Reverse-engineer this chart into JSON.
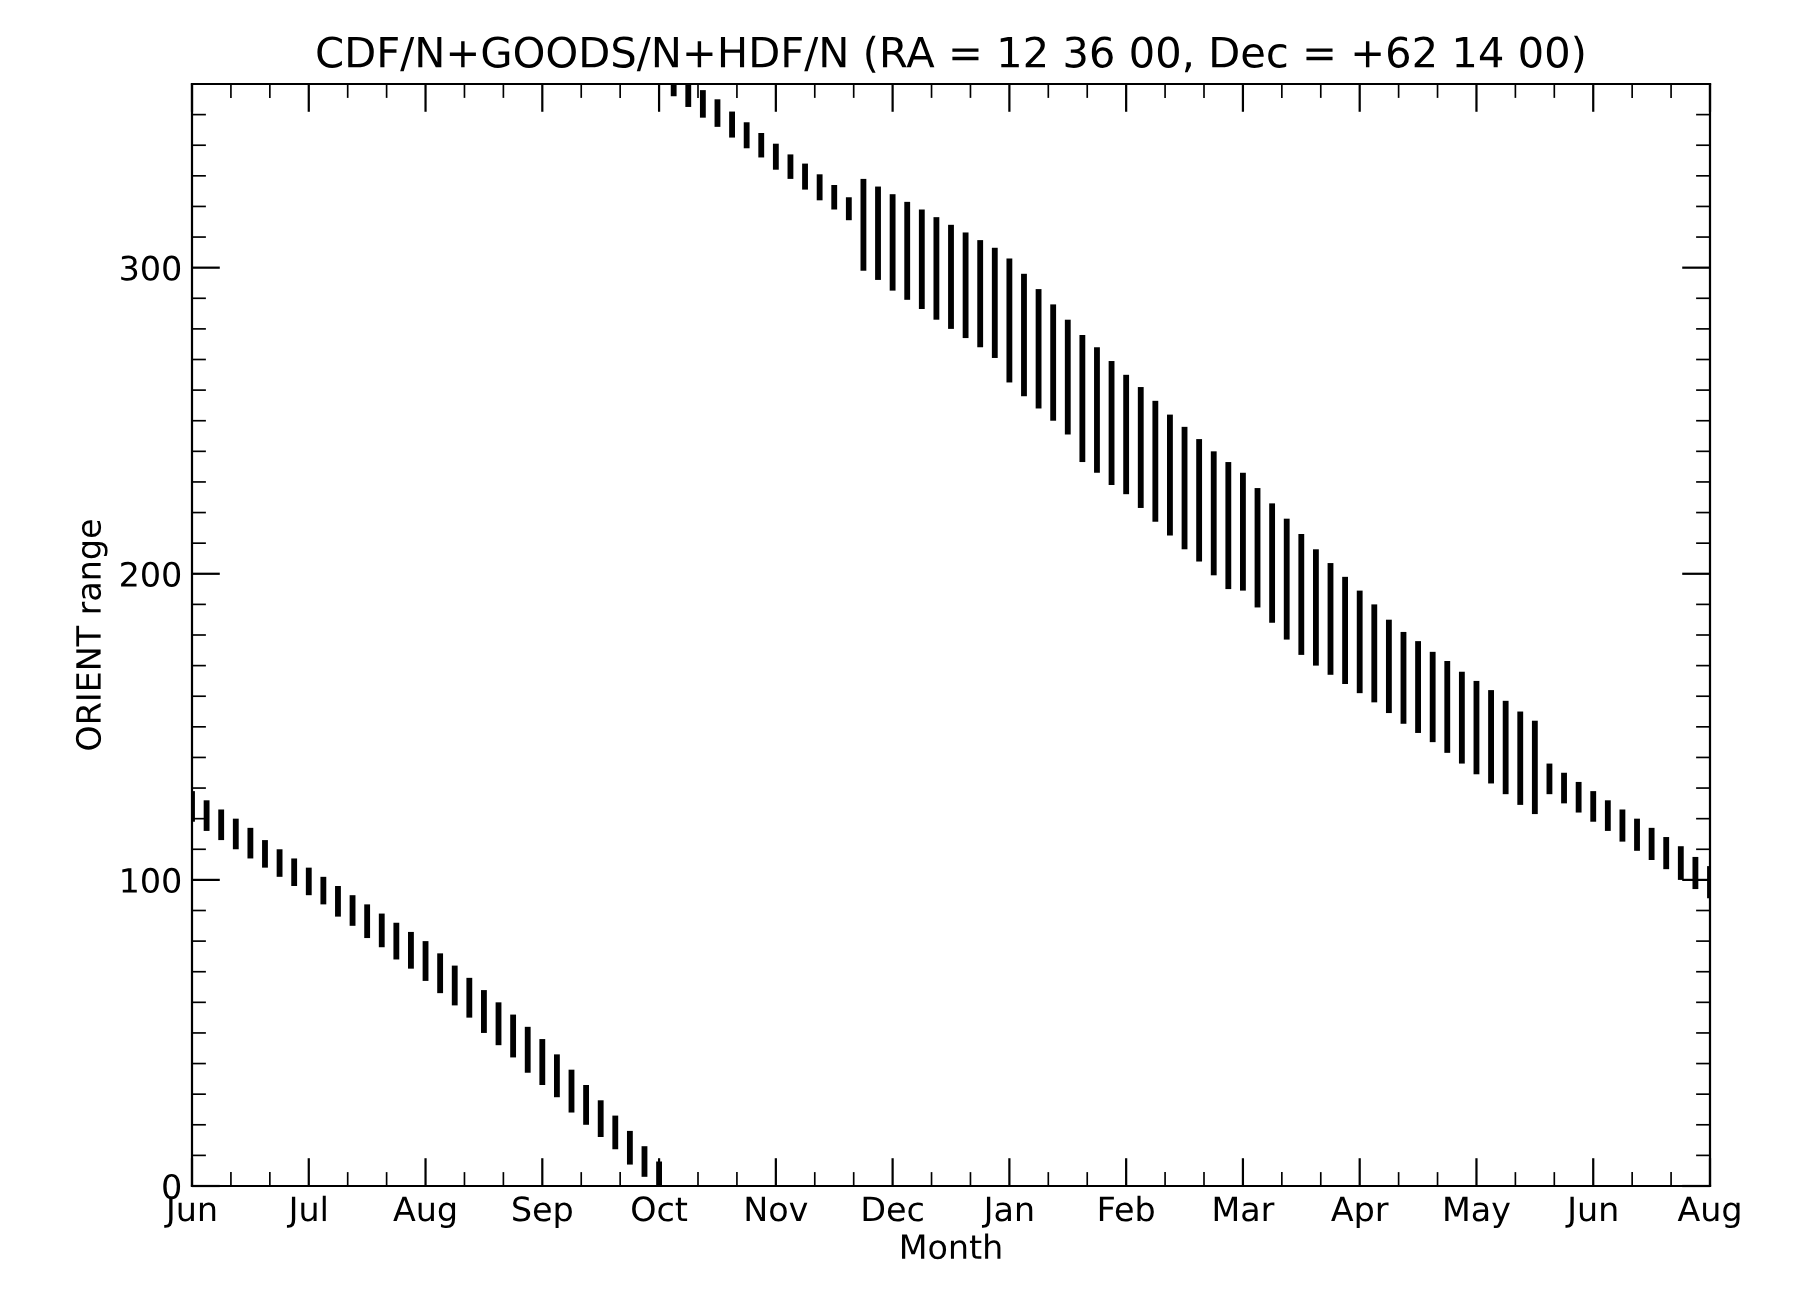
{
  "chart_data": {
    "type": "bar",
    "title": "CDF/N+GOODS/N+HDF/N (RA = 12 36 00, Dec = +62 14 00)",
    "xlabel": "Month",
    "ylabel": "ORIENT range",
    "color": "#000000",
    "categories": [
      "Jun",
      null,
      null,
      null,
      null,
      null,
      null,
      null,
      "Jul",
      null,
      null,
      null,
      null,
      null,
      null,
      null,
      "Aug",
      null,
      null,
      null,
      null,
      null,
      null,
      null,
      "Sep",
      null,
      null,
      null,
      null,
      null,
      null,
      null,
      "Oct",
      null,
      null,
      null,
      null,
      null,
      null,
      null,
      "Nov",
      null,
      null,
      null,
      null,
      null,
      null,
      null,
      "Dec",
      null,
      null,
      null,
      null,
      null,
      null,
      null,
      "Jan",
      null,
      null,
      null,
      null,
      null,
      null,
      null,
      "Feb",
      null,
      null,
      null,
      null,
      null,
      null,
      null,
      "Mar",
      null,
      null,
      null,
      null,
      null,
      null,
      null,
      "Apr",
      null,
      null,
      null,
      null,
      null,
      null,
      null,
      "May",
      null,
      null,
      null,
      null,
      null,
      null,
      null,
      "Jun",
      null,
      null,
      null,
      null,
      null,
      null,
      null,
      "Aug"
    ],
    "base": [
      119,
      116,
      113,
      110,
      107,
      104,
      101,
      98,
      95,
      92,
      88,
      85,
      81,
      78,
      74,
      71,
      67,
      63,
      59,
      55,
      50,
      46,
      42,
      37,
      33,
      29,
      24,
      20,
      16,
      12,
      7,
      3,
      0,
      356,
      352.5,
      349,
      346,
      342.5,
      339,
      336,
      332,
      329,
      325.5,
      322,
      319,
      315.5,
      299,
      296,
      292.5,
      289.5,
      286.5,
      283,
      280,
      277,
      274,
      270.5,
      262.5,
      258,
      254,
      250,
      245.5,
      236.5,
      233,
      229,
      226,
      221.5,
      217,
      212.5,
      208,
      204,
      199.5,
      195,
      194.5,
      189,
      184,
      178.5,
      173.5,
      170,
      167,
      164,
      161,
      158,
      154.5,
      151,
      148,
      145,
      141.5,
      138,
      134.5,
      131.5,
      128,
      124.5,
      121.5,
      128,
      125,
      122,
      119,
      116,
      112.5,
      109.5,
      106.5,
      103.5,
      100,
      97,
      94
    ],
    "values": [
      10,
      10,
      10,
      10,
      10,
      9,
      9,
      9,
      9,
      9,
      10,
      10,
      11,
      11,
      12,
      12,
      13,
      13,
      13,
      13,
      14,
      14,
      14,
      15,
      15,
      14,
      14,
      13,
      12,
      11,
      11,
      10,
      8,
      4,
      7.5,
      9,
      9,
      8.5,
      8.5,
      8,
      8.5,
      8,
      8.5,
      8.5,
      8,
      7.5,
      30,
      30.5,
      31.5,
      32,
      32.5,
      33.5,
      34,
      34.5,
      35,
      36,
      40.5,
      40,
      39,
      38,
      37.5,
      41.5,
      41,
      40.5,
      39,
      39.5,
      39.5,
      39.5,
      40,
      40,
      40.5,
      41.5,
      38.5,
      39,
      39,
      39.5,
      39.5,
      38,
      36.5,
      35,
      33.5,
      32,
      30.5,
      30,
      30,
      29.5,
      30,
      30,
      30.5,
      30.5,
      30.5,
      30.5,
      30.5,
      10,
      10,
      10,
      10,
      10,
      10.5,
      10.5,
      10.5,
      10.5,
      11,
      10.5,
      10.5
    ],
    "ylim": [
      0,
      360
    ],
    "yticks": [
      0,
      100,
      200,
      300
    ]
  }
}
